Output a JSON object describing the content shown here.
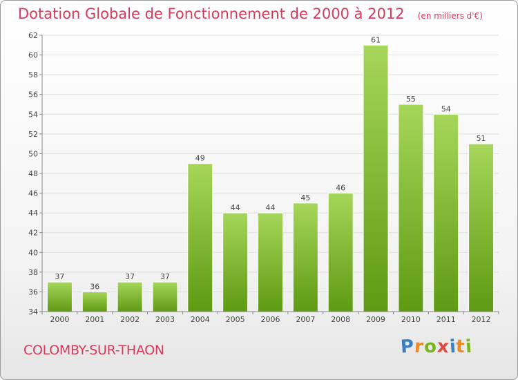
{
  "title": "Dotation Globale de Fonctionnement de 2000 à 2012",
  "subtitle": "(en milliers d'€)",
  "commune": "COLOMBY-SUR-THAON",
  "brand": {
    "letters": [
      "P",
      "r",
      "o",
      "x",
      "i",
      "t",
      "i"
    ],
    "colors": [
      "#3a7fc1",
      "#e8892a",
      "#7ab51d",
      "#e14a3f",
      "#3a7fc1",
      "#e8892a",
      "#7ab51d"
    ]
  },
  "chart_data": {
    "type": "bar",
    "categories": [
      "2000",
      "2001",
      "2002",
      "2003",
      "2004",
      "2005",
      "2006",
      "2007",
      "2008",
      "2009",
      "2010",
      "2011",
      "2012"
    ],
    "values": [
      37,
      36,
      37,
      37,
      49,
      44,
      44,
      45,
      46,
      61,
      55,
      54,
      51
    ],
    "title": "Dotation Globale de Fonctionnement de 2000 à 2012",
    "ylim": [
      34,
      62
    ],
    "yticks": [
      34,
      36,
      38,
      40,
      42,
      44,
      46,
      48,
      50,
      52,
      54,
      56,
      58,
      60,
      62
    ],
    "grid": true,
    "colors": {
      "bar_light": "#a6d65a",
      "bar_dark": "#5e9a12",
      "grid": "#dddddd",
      "axis": "#888888",
      "label": "#444444"
    }
  }
}
